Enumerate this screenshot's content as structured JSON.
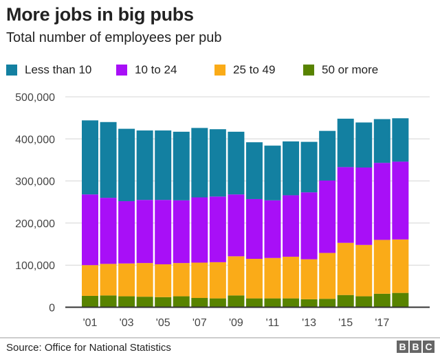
{
  "chart_data": {
    "type": "bar",
    "stacked": true,
    "title": "More jobs in big pubs",
    "subtitle": "Total number of employees per pub",
    "categories": [
      "2001",
      "2002",
      "2003",
      "2004",
      "2005",
      "2006",
      "2007",
      "2008",
      "2009",
      "2010",
      "2011",
      "2012",
      "2013",
      "2014",
      "2015",
      "2016",
      "2017",
      "2018"
    ],
    "tick_labels": [
      "'01",
      "'03",
      "'05",
      "'07",
      "'09",
      "'11",
      "'13",
      "'15",
      "'17"
    ],
    "tick_categories": [
      "2001",
      "2003",
      "2005",
      "2007",
      "2009",
      "2011",
      "2013",
      "2015",
      "2017"
    ],
    "y_ticks": [
      0,
      100000,
      200000,
      300000,
      400000,
      500000
    ],
    "y_tick_labels": [
      "0",
      "100,000",
      "200,000",
      "300,000",
      "400,000",
      "500,000"
    ],
    "ylim": [
      0,
      500000
    ],
    "grid": true,
    "legend_placement": "top",
    "series": [
      {
        "name": "50 or more",
        "color": "#588300",
        "values": [
          27000,
          28000,
          26000,
          25000,
          24000,
          26000,
          22000,
          21000,
          28000,
          21000,
          21000,
          21000,
          19000,
          20000,
          29000,
          26000,
          32000,
          34000
        ]
      },
      {
        "name": "25 to 49",
        "color": "#FAAB18",
        "values": [
          73000,
          75000,
          78000,
          80000,
          78000,
          79000,
          84000,
          86000,
          93000,
          94000,
          96000,
          99000,
          95000,
          109000,
          124000,
          122000,
          128000,
          127000
        ]
      },
      {
        "name": "10 to 24",
        "color": "#A80FF7",
        "values": [
          168000,
          157000,
          148000,
          150000,
          153000,
          149000,
          155000,
          156000,
          147000,
          142000,
          137000,
          146000,
          159000,
          172000,
          180000,
          184000,
          183000,
          185000
        ]
      },
      {
        "name": "Less than 10",
        "color": "#1380A1",
        "values": [
          176000,
          180000,
          172000,
          165000,
          165000,
          163000,
          165000,
          160000,
          149000,
          135000,
          130000,
          128000,
          120000,
          118000,
          115000,
          107000,
          104000,
          103000
        ]
      }
    ],
    "legend": [
      "Less than 10",
      "10 to 24",
      "25 to 49",
      "50 or more"
    ]
  },
  "footer": {
    "source": "Source: Office for National Statistics",
    "logo": [
      "B",
      "B",
      "C"
    ]
  }
}
